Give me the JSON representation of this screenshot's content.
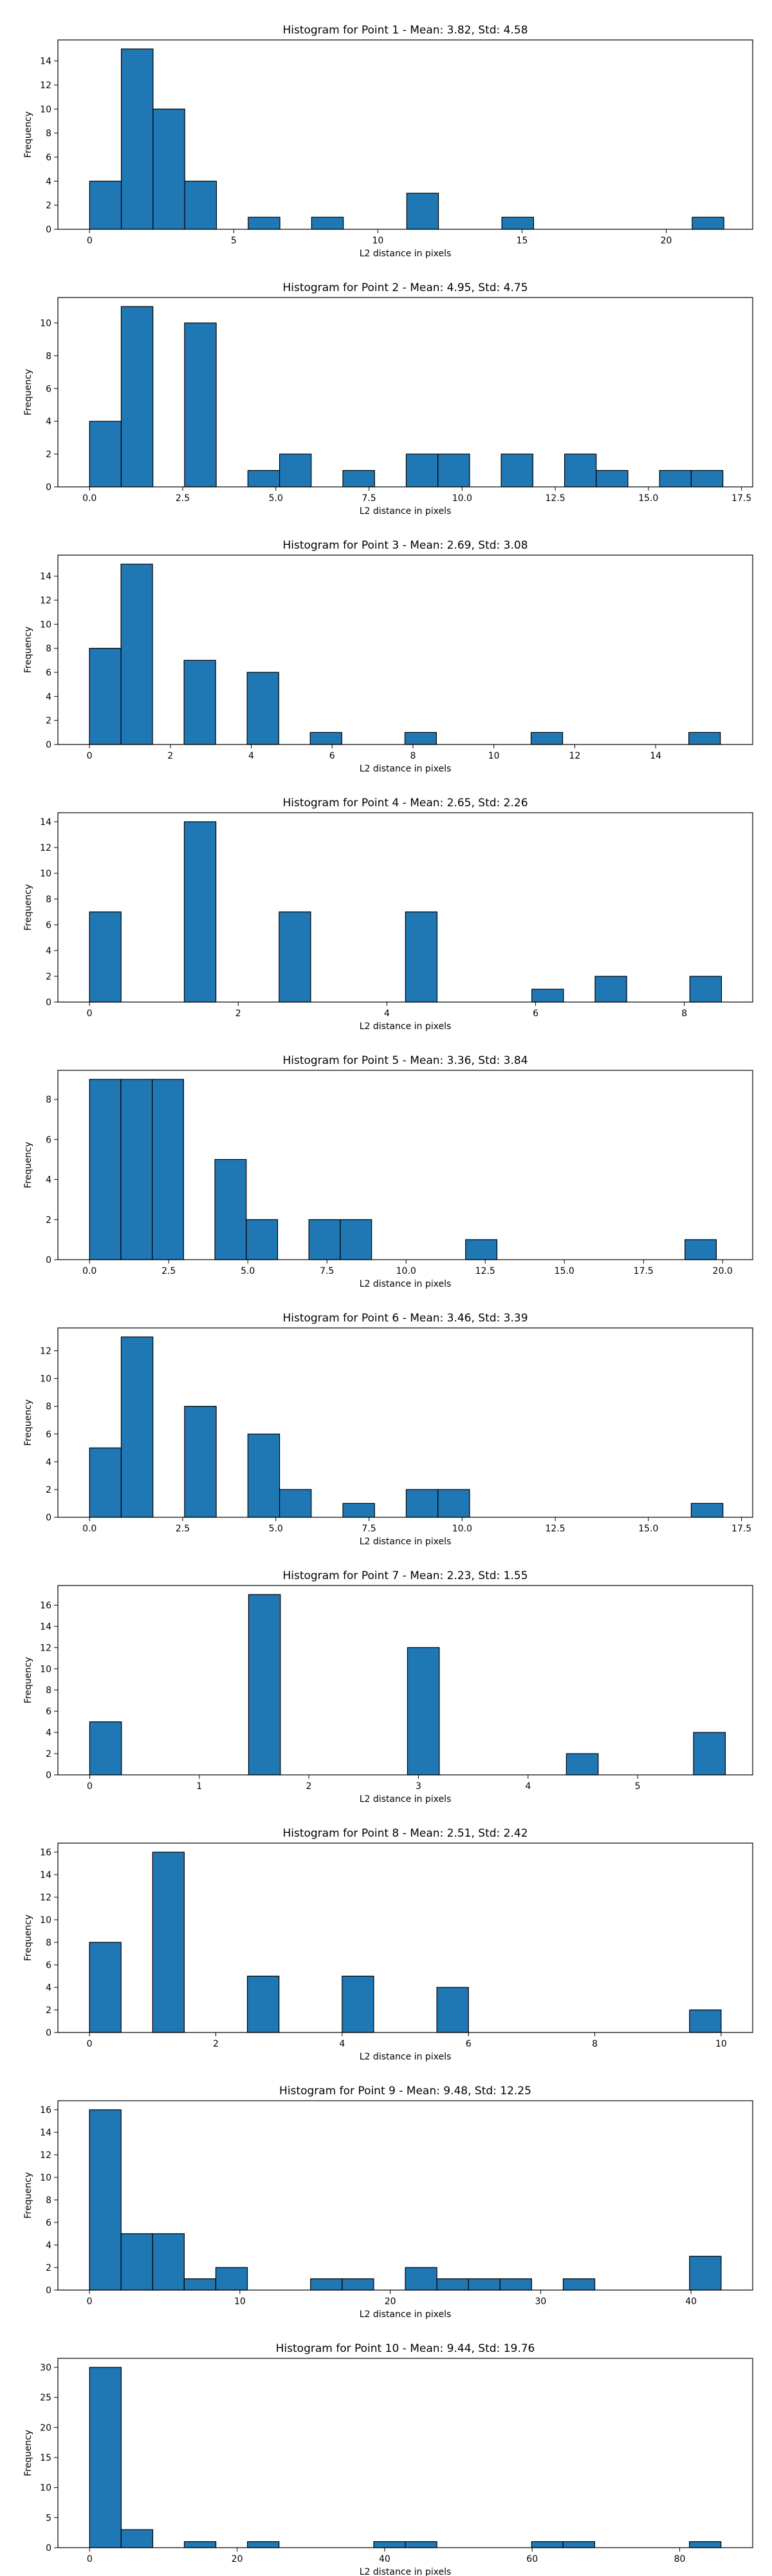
{
  "chart_data": [
    {
      "type": "bar",
      "title": "Histogram for Point 1 - Mean: 3.82, Std: 4.58",
      "xlabel": "L2 distance in pixels",
      "ylabel": "Frequency",
      "xlim": [
        -1.1,
        23.0
      ],
      "ylim": [
        0,
        15.75
      ],
      "xticks": [
        0,
        5,
        10,
        15,
        20
      ],
      "xtick_labels": [
        "0",
        "5",
        "10",
        "15",
        "20"
      ],
      "yticks": [
        0,
        2,
        4,
        6,
        8,
        10,
        12,
        14
      ],
      "bin_edges": [
        0.0,
        1.1,
        2.2,
        3.3,
        4.4,
        5.5,
        6.6,
        7.7,
        8.8,
        9.9,
        11.0,
        12.1,
        13.2,
        14.3,
        15.4,
        16.5,
        17.6,
        18.7,
        19.8,
        20.9,
        22.0
      ],
      "counts": [
        4,
        15,
        10,
        4,
        0,
        1,
        0,
        1,
        0,
        0,
        3,
        0,
        0,
        1,
        0,
        0,
        0,
        0,
        0,
        1
      ]
    },
    {
      "type": "bar",
      "title": "Histogram for Point 2 - Mean: 4.95, Std: 4.75",
      "xlabel": "L2 distance in pixels",
      "ylabel": "Frequency",
      "xlim": [
        -0.85,
        17.8
      ],
      "ylim": [
        0,
        11.55
      ],
      "xticks": [
        0,
        2.5,
        5,
        7.5,
        10,
        12.5,
        15,
        17.5
      ],
      "xtick_labels": [
        "0.0",
        "2.5",
        "5.0",
        "7.5",
        "10.0",
        "12.5",
        "15.0",
        "17.5"
      ],
      "yticks": [
        0,
        2,
        4,
        6,
        8,
        10
      ],
      "bin_edges": [
        0.0,
        0.85,
        1.7,
        2.55,
        3.4,
        4.25,
        5.1,
        5.95,
        6.8,
        7.65,
        8.5,
        9.35,
        10.2,
        11.05,
        11.9,
        12.75,
        13.6,
        14.45,
        15.3,
        16.15,
        17.0
      ],
      "counts": [
        4,
        11,
        0,
        10,
        0,
        1,
        2,
        0,
        1,
        0,
        2,
        2,
        0,
        2,
        0,
        2,
        1,
        0,
        1,
        1
      ]
    },
    {
      "type": "bar",
      "title": "Histogram for Point 3 - Mean: 2.69, Std: 3.08",
      "xlabel": "L2 distance in pixels",
      "ylabel": "Frequency",
      "xlim": [
        -0.78,
        16.4
      ],
      "ylim": [
        0,
        15.75
      ],
      "xticks": [
        0,
        2,
        4,
        6,
        8,
        10,
        12,
        14
      ],
      "xtick_labels": [
        "0",
        "2",
        "4",
        "6",
        "8",
        "10",
        "12",
        "14"
      ],
      "yticks": [
        0,
        2,
        4,
        6,
        8,
        10,
        12,
        14
      ],
      "bin_edges": [
        0.0,
        0.78,
        1.56,
        2.34,
        3.12,
        3.9,
        4.68,
        5.46,
        6.24,
        7.02,
        7.8,
        8.58,
        9.36,
        10.14,
        10.92,
        11.7,
        12.48,
        13.26,
        14.04,
        14.82,
        15.6
      ],
      "counts": [
        8,
        15,
        0,
        7,
        0,
        6,
        0,
        1,
        0,
        0,
        1,
        0,
        0,
        0,
        1,
        0,
        0,
        0,
        0,
        1
      ]
    },
    {
      "type": "bar",
      "title": "Histogram for Point 4 - Mean: 2.65, Std: 2.26",
      "xlabel": "L2 distance in pixels",
      "ylabel": "Frequency",
      "xlim": [
        -0.425,
        8.92
      ],
      "ylim": [
        0,
        14.7
      ],
      "xticks": [
        0,
        2,
        4,
        6,
        8
      ],
      "xtick_labels": [
        "0",
        "2",
        "4",
        "6",
        "8"
      ],
      "yticks": [
        0,
        2,
        4,
        6,
        8,
        10,
        12,
        14
      ],
      "bin_edges": [
        0.0,
        0.425,
        0.85,
        1.275,
        1.7,
        2.125,
        2.55,
        2.975,
        3.4,
        3.825,
        4.25,
        4.675,
        5.1,
        5.525,
        5.95,
        6.375,
        6.8,
        7.225,
        7.65,
        8.075,
        8.5
      ],
      "counts": [
        7,
        0,
        0,
        14,
        0,
        0,
        7,
        0,
        0,
        0,
        7,
        0,
        0,
        0,
        1,
        0,
        2,
        0,
        0,
        2
      ]
    },
    {
      "type": "bar",
      "title": "Histogram for Point 5 - Mean: 3.36, Std: 3.84",
      "xlabel": "L2 distance in pixels",
      "ylabel": "Frequency",
      "xlim": [
        -1.0,
        20.95
      ],
      "ylim": [
        0,
        9.45
      ],
      "xticks": [
        0,
        2.5,
        5,
        7.5,
        10,
        12.5,
        15,
        17.5,
        20
      ],
      "xtick_labels": [
        "0.0",
        "2.5",
        "5.0",
        "7.5",
        "10.0",
        "12.5",
        "15.0",
        "17.5",
        "20.0"
      ],
      "yticks": [
        0,
        2,
        4,
        6,
        8
      ],
      "bin_edges": [
        0.0,
        0.99,
        1.98,
        2.97,
        3.96,
        4.95,
        5.94,
        6.93,
        7.92,
        8.91,
        9.9,
        10.89,
        11.88,
        12.87,
        13.86,
        14.85,
        15.84,
        16.83,
        17.82,
        18.81,
        19.8
      ],
      "counts": [
        9,
        9,
        9,
        0,
        5,
        2,
        0,
        2,
        2,
        0,
        0,
        0,
        1,
        0,
        0,
        0,
        0,
        0,
        0,
        1
      ]
    },
    {
      "type": "bar",
      "title": "Histogram for Point 6 - Mean: 3.46, Std: 3.39",
      "xlabel": "L2 distance in pixels",
      "ylabel": "Frequency",
      "xlim": [
        -0.85,
        17.8
      ],
      "ylim": [
        0,
        13.65
      ],
      "xticks": [
        0,
        2.5,
        5,
        7.5,
        10,
        12.5,
        15,
        17.5
      ],
      "xtick_labels": [
        "0.0",
        "2.5",
        "5.0",
        "7.5",
        "10.0",
        "12.5",
        "15.0",
        "17.5"
      ],
      "yticks": [
        0,
        2,
        4,
        6,
        8,
        10,
        12
      ],
      "bin_edges": [
        0.0,
        0.85,
        1.7,
        2.55,
        3.4,
        4.25,
        5.1,
        5.95,
        6.8,
        7.65,
        8.5,
        9.35,
        10.2,
        11.05,
        11.9,
        12.75,
        13.6,
        14.45,
        15.3,
        16.15,
        17.0
      ],
      "counts": [
        5,
        13,
        0,
        8,
        0,
        6,
        2,
        0,
        1,
        0,
        2,
        2,
        0,
        0,
        0,
        0,
        0,
        0,
        0,
        1
      ]
    },
    {
      "type": "bar",
      "title": "Histogram for Point 7 - Mean: 2.23, Std: 1.55",
      "xlabel": "L2 distance in pixels",
      "ylabel": "Frequency",
      "xlim": [
        -0.29,
        6.05
      ],
      "ylim": [
        0,
        17.85
      ],
      "xticks": [
        0,
        1,
        2,
        3,
        4,
        5
      ],
      "xtick_labels": [
        "0",
        "1",
        "2",
        "3",
        "4",
        "5"
      ],
      "yticks": [
        0,
        2,
        4,
        6,
        8,
        10,
        12,
        14,
        16
      ],
      "bin_edges": [
        0.0,
        0.29,
        0.58,
        0.87,
        1.16,
        1.45,
        1.74,
        2.03,
        2.32,
        2.61,
        2.9,
        3.19,
        3.48,
        3.77,
        4.06,
        4.35,
        4.64,
        4.93,
        5.22,
        5.51,
        5.8
      ],
      "counts": [
        5,
        0,
        0,
        0,
        0,
        17,
        0,
        0,
        0,
        0,
        12,
        0,
        0,
        0,
        0,
        2,
        0,
        0,
        0,
        4
      ]
    },
    {
      "type": "bar",
      "title": "Histogram for Point 8 - Mean: 2.51, Std: 2.42",
      "xlabel": "L2 distance in pixels",
      "ylabel": "Frequency",
      "xlim": [
        -0.5,
        10.5
      ],
      "ylim": [
        0,
        16.8
      ],
      "xticks": [
        0,
        2,
        4,
        6,
        8,
        10
      ],
      "xtick_labels": [
        "0",
        "2",
        "4",
        "6",
        "8",
        "10"
      ],
      "yticks": [
        0,
        2,
        4,
        6,
        8,
        10,
        12,
        14,
        16
      ],
      "bin_edges": [
        0.0,
        0.5,
        1.0,
        1.5,
        2.0,
        2.5,
        3.0,
        3.5,
        4.0,
        4.5,
        5.0,
        5.5,
        6.0,
        6.5,
        7.0,
        7.5,
        8.0,
        8.5,
        9.0,
        9.5,
        10.0
      ],
      "counts": [
        8,
        0,
        16,
        0,
        0,
        5,
        0,
        0,
        5,
        0,
        0,
        4,
        0,
        0,
        0,
        0,
        0,
        0,
        0,
        2
      ]
    },
    {
      "type": "bar",
      "title": "Histogram for Point 9 - Mean: 9.48, Std: 12.25",
      "xlabel": "L2 distance in pixels",
      "ylabel": "Frequency",
      "xlim": [
        -2.1,
        44.1
      ],
      "ylim": [
        0,
        16.8
      ],
      "xticks": [
        0,
        10,
        20,
        30,
        40
      ],
      "xtick_labels": [
        "0",
        "10",
        "20",
        "30",
        "40"
      ],
      "yticks": [
        0,
        2,
        4,
        6,
        8,
        10,
        12,
        14,
        16
      ],
      "bin_edges": [
        0.0,
        2.1,
        4.2,
        6.3,
        8.4,
        10.5,
        12.6,
        14.7,
        16.8,
        18.9,
        21.0,
        23.1,
        25.2,
        27.3,
        29.4,
        31.5,
        33.6,
        35.7,
        37.8,
        39.9,
        42.0
      ],
      "counts": [
        16,
        5,
        5,
        1,
        2,
        0,
        0,
        1,
        1,
        0,
        2,
        1,
        1,
        1,
        0,
        1,
        0,
        0,
        0,
        3
      ]
    },
    {
      "type": "bar",
      "title": "Histogram for Point 10 - Mean: 9.44, Std: 19.76",
      "xlabel": "L2 distance in pixels",
      "ylabel": "Frequency",
      "xlim": [
        -4.3,
        89.9
      ],
      "ylim": [
        0,
        31.5
      ],
      "xticks": [
        0,
        20,
        40,
        60,
        80
      ],
      "xtick_labels": [
        "0",
        "20",
        "40",
        "60",
        "80"
      ],
      "yticks": [
        0,
        5,
        10,
        15,
        20,
        25,
        30
      ],
      "bin_edges": [
        0.0,
        4.28,
        8.56,
        12.84,
        17.12,
        21.4,
        25.68,
        29.96,
        34.24,
        38.52,
        42.8,
        47.08,
        51.36,
        55.64,
        59.92,
        64.2,
        68.48,
        72.76,
        77.04,
        81.32,
        85.6
      ],
      "counts": [
        30,
        3,
        0,
        1,
        0,
        1,
        0,
        0,
        0,
        1,
        1,
        0,
        0,
        0,
        1,
        1,
        0,
        0,
        0,
        1
      ]
    }
  ],
  "colors": {
    "bar_fill": "#1f77b4",
    "bar_edge": "#000000",
    "axis": "#000000",
    "text": "#000000"
  }
}
